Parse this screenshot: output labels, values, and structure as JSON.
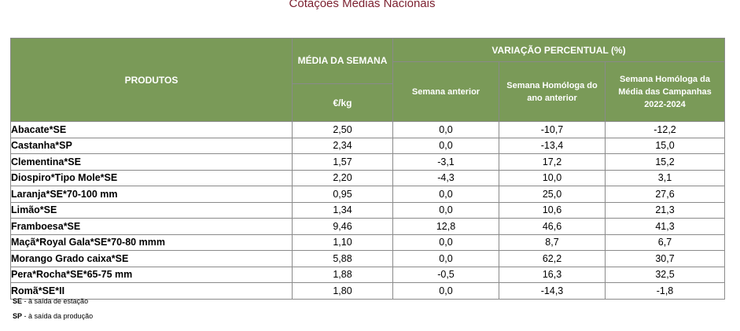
{
  "title": "Cotações Médias Nacionais",
  "table": {
    "header": {
      "produtos": "PRODUTOS",
      "media_semana": "MÉDIA DA SEMANA",
      "unit": "€/kg",
      "variacao": "VARIAÇÃO PERCENTUAL (%)",
      "semana_anterior": "Semana anterior",
      "semana_homologa": "Semana Homóloga do ano anterior",
      "semana_homologa_campanhas": "Semana Homóloga da Média das Campanhas 2022-2024"
    },
    "rows": [
      {
        "produto": "Abacate*SE",
        "media": "2,50",
        "var_semana": "0,0",
        "var_ano": "-10,7",
        "var_campanhas": "-12,2"
      },
      {
        "produto": "Castanha*SP",
        "media": "2,34",
        "var_semana": "0,0",
        "var_ano": "-13,4",
        "var_campanhas": "15,0"
      },
      {
        "produto": "Clementina*SE",
        "media": "1,57",
        "var_semana": "-3,1",
        "var_ano": "17,2",
        "var_campanhas": "15,2"
      },
      {
        "produto": "Diospiro*Tipo Mole*SE",
        "media": "2,20",
        "var_semana": "-4,3",
        "var_ano": "10,0",
        "var_campanhas": "3,1"
      },
      {
        "produto": "Laranja*SE*70-100 mm",
        "media": "0,95",
        "var_semana": "0,0",
        "var_ano": "25,0",
        "var_campanhas": "27,6"
      },
      {
        "produto": "Limão*SE",
        "media": "1,34",
        "var_semana": "0,0",
        "var_ano": "10,6",
        "var_campanhas": "21,3"
      },
      {
        "produto": "Framboesa*SE",
        "media": "9,46",
        "var_semana": "12,8",
        "var_ano": "46,6",
        "var_campanhas": "41,3"
      },
      {
        "produto": "Maçã*Royal Gala*SE*70-80 mmm",
        "media": "1,10",
        "var_semana": "0,0",
        "var_ano": "8,7",
        "var_campanhas": "6,7"
      },
      {
        "produto": "Morango Grado caixa*SE",
        "media": "5,88",
        "var_semana": "0,0",
        "var_ano": "62,2",
        "var_campanhas": "30,7"
      },
      {
        "produto": "Pera*Rocha*SE*65-75 mm",
        "media": "1,88",
        "var_semana": "-0,5",
        "var_ano": "16,3",
        "var_campanhas": "32,5"
      },
      {
        "produto": "Romã*SE*II",
        "media": "1,80",
        "var_semana": "0,0",
        "var_ano": "-14,3",
        "var_campanhas": "-1,8"
      }
    ]
  },
  "notes": [
    {
      "abbr": "SE",
      "text": " - à saída de estação"
    },
    {
      "abbr": "SP",
      "text": " - à saída da produção"
    }
  ]
}
